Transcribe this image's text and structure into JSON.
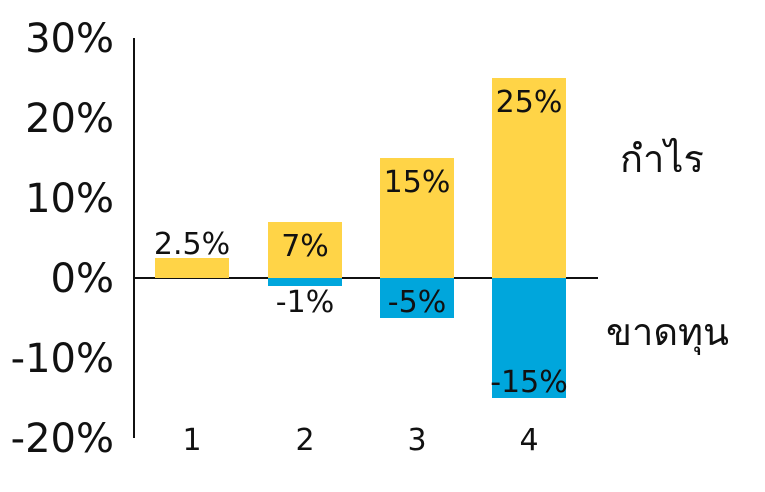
{
  "chart_data": {
    "type": "bar",
    "categories": [
      "1",
      "2",
      "3",
      "4"
    ],
    "series": [
      {
        "name": "",
        "color": "#FFD447",
        "values": [
          2.5,
          7,
          15,
          25
        ],
        "labels": [
          "2.5%",
          "7%",
          "15%",
          "25%"
        ]
      },
      {
        "name": "",
        "color": "#00A6DC",
        "values": [
          0,
          -1,
          -5,
          -15
        ],
        "labels": [
          "",
          "-1%",
          "-5%",
          "-15%"
        ]
      }
    ],
    "yticks": [
      {
        "value": 30,
        "label": "30%"
      },
      {
        "value": 20,
        "label": "20%"
      },
      {
        "value": 10,
        "label": "10%"
      },
      {
        "value": 0,
        "label": "0%"
      },
      {
        "value": -10,
        "label": "-10%"
      },
      {
        "value": -20,
        "label": "-20%"
      }
    ],
    "ylim": [
      -20,
      30
    ],
    "title": "",
    "xlabel": "",
    "ylabel": "",
    "grid": false,
    "annotations": {
      "profit": "กำไร",
      "loss": "ขาดทุน"
    }
  }
}
